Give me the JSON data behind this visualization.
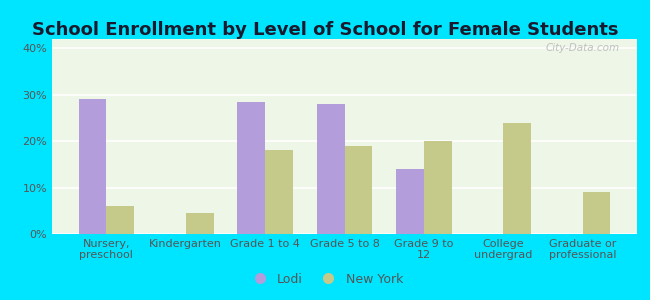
{
  "title": "School Enrollment by Level of School for Female Students",
  "categories": [
    "Nursery,\npreschool",
    "Kindergarten",
    "Grade 1 to 4",
    "Grade 5 to 8",
    "Grade 9 to\n12",
    "College\nundergrad",
    "Graduate or\nprofessional"
  ],
  "lodi": [
    29,
    0,
    28.5,
    28,
    14,
    0,
    0
  ],
  "new_york": [
    6,
    4.5,
    18,
    19,
    20,
    24,
    9
  ],
  "lodi_color": "#b39ddb",
  "new_york_color": "#c5c98a",
  "background_outer": "#00e5ff",
  "background_inner_top": "#e8f5e9",
  "background_inner_bottom": "#f5faf0",
  "ylim": [
    0,
    42
  ],
  "yticks": [
    0,
    10,
    20,
    30,
    40
  ],
  "ytick_labels": [
    "0%",
    "10%",
    "20%",
    "30%",
    "40%"
  ],
  "bar_width": 0.35,
  "legend_lodi": "Lodi",
  "legend_ny": "New York",
  "title_fontsize": 13,
  "tick_fontsize": 8,
  "legend_fontsize": 9,
  "title_color": "#1a1a2e",
  "tick_color": "#555555"
}
